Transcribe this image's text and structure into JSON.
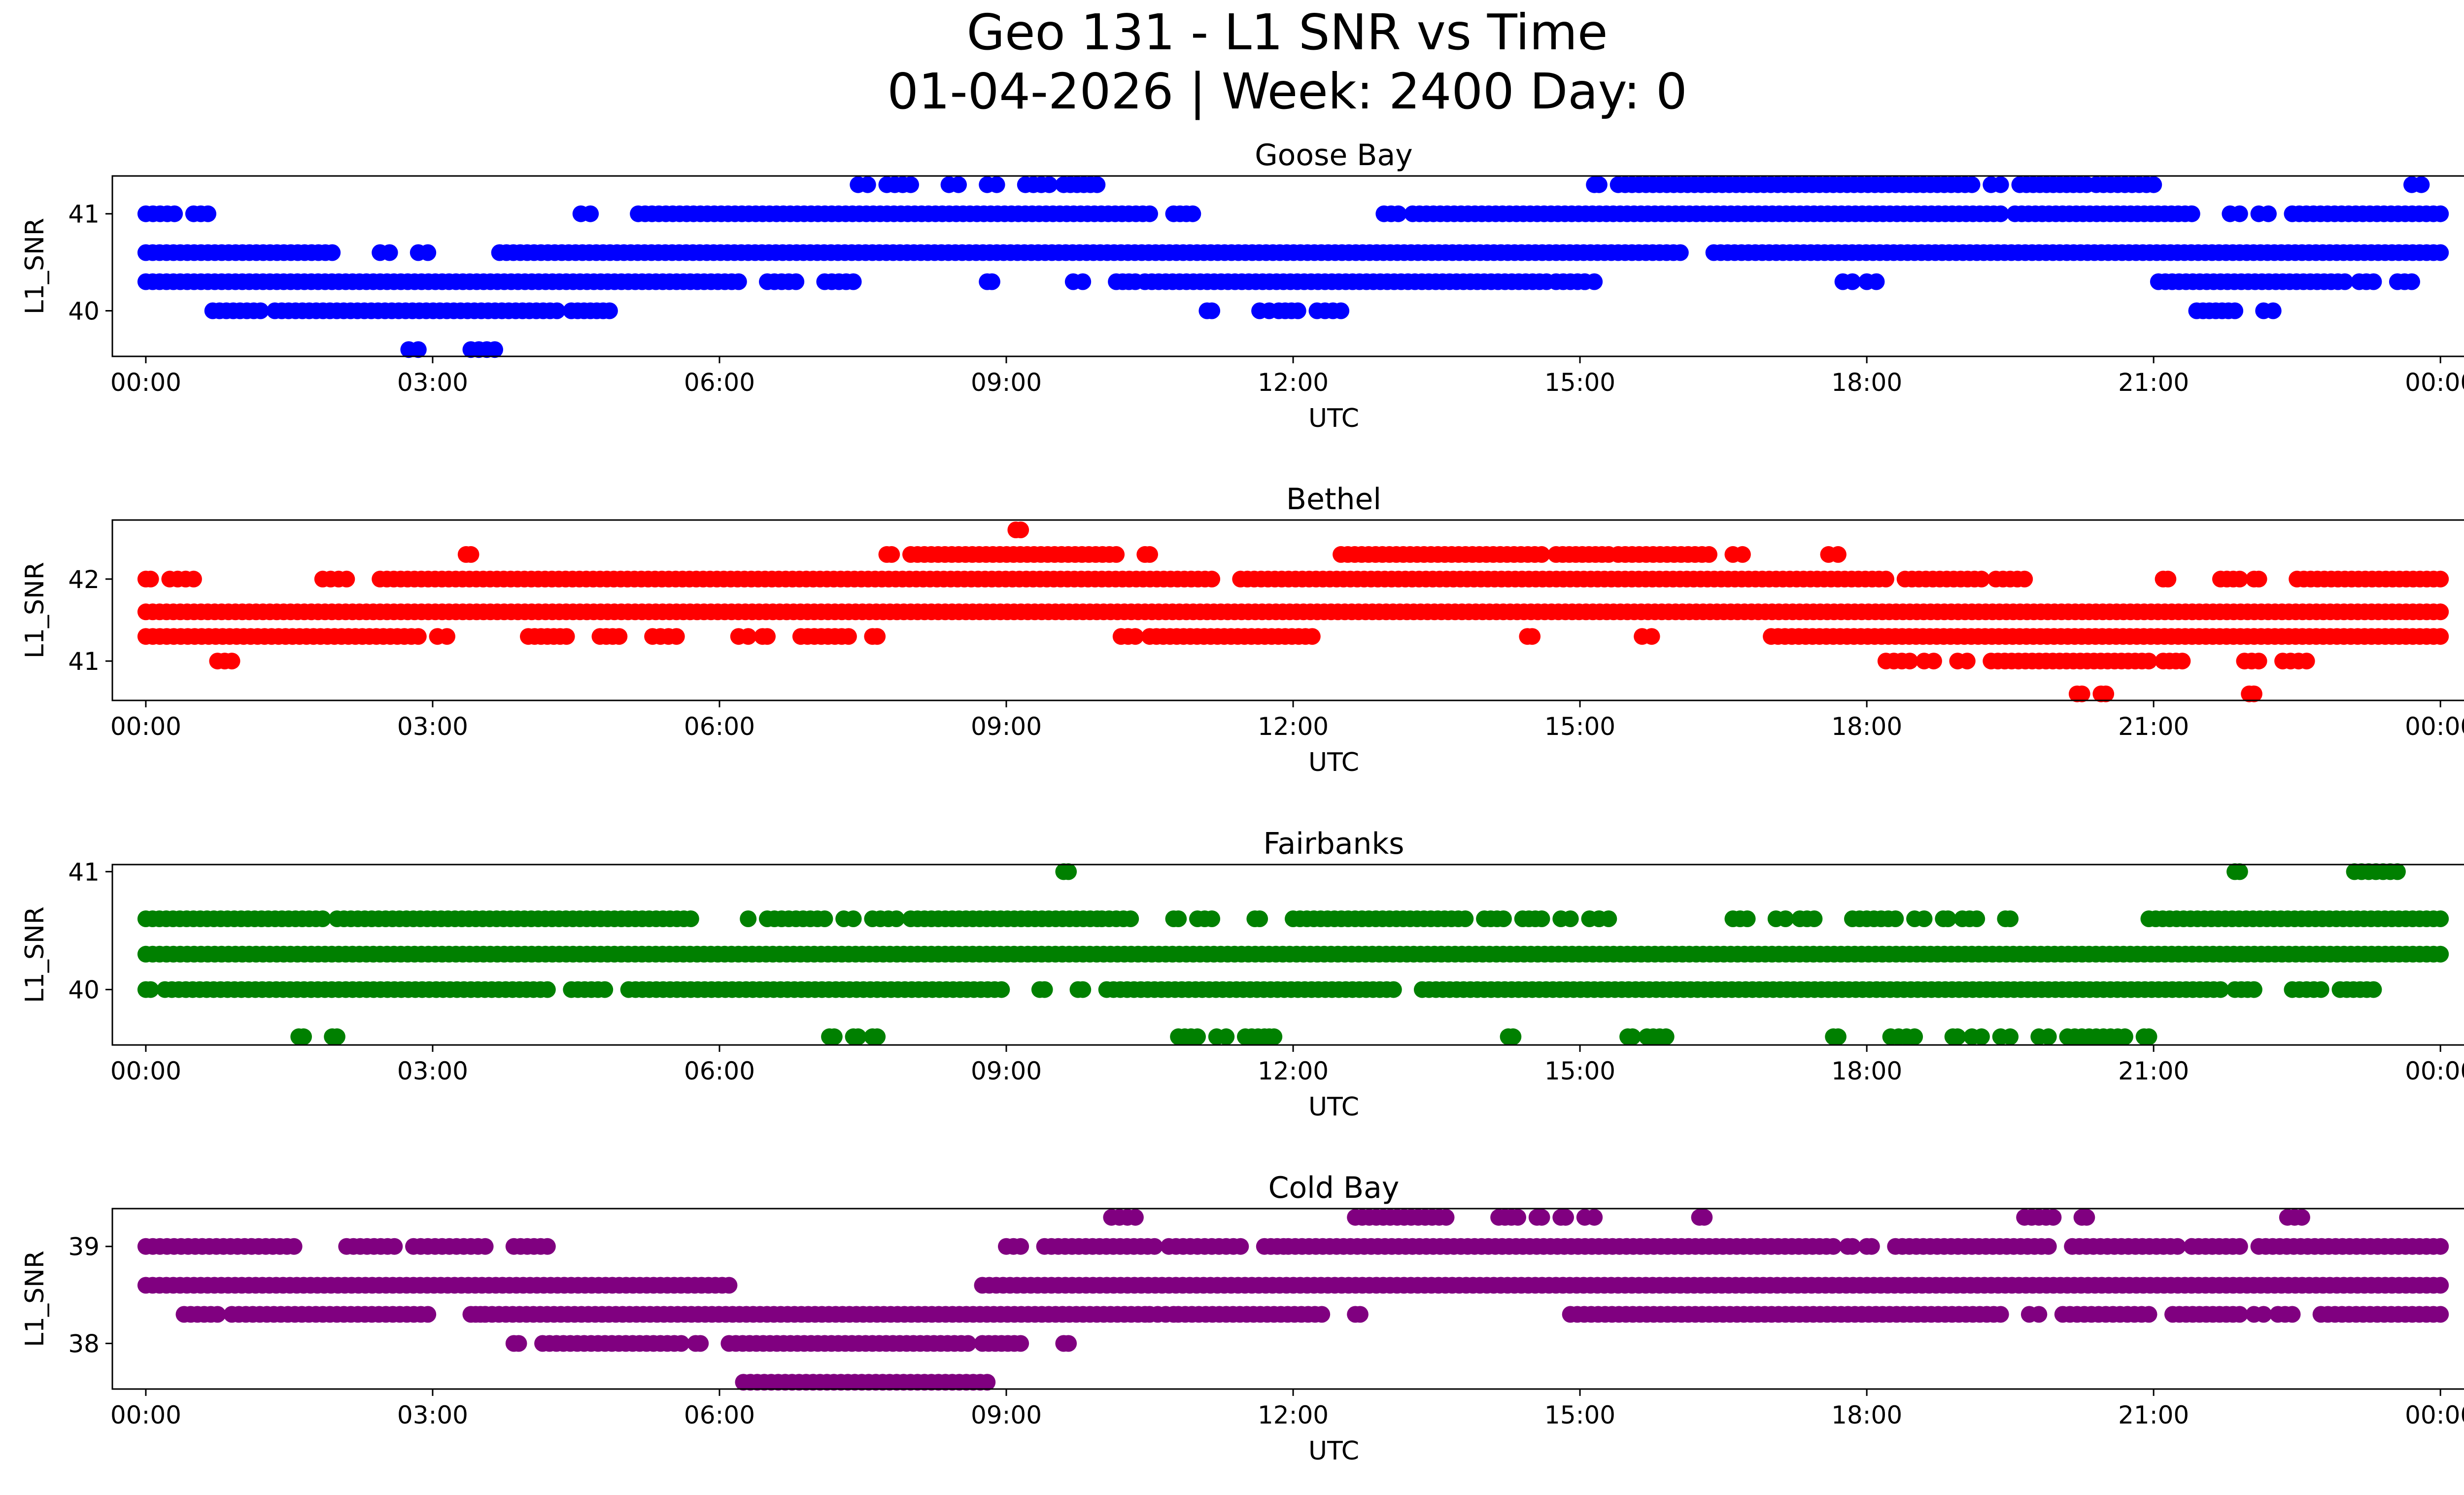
{
  "figure_title": {
    "line1": "Geo 131 - L1 SNR vs Time",
    "line2": "01-04-2026 | Week: 2400 Day: 0"
  },
  "chart_data": [
    {
      "type": "scatter",
      "title": "Goose Bay",
      "color": "#0000ff",
      "xlabel": "UTC",
      "ylabel": "L1_SNR",
      "x_unit": "hours",
      "xlim": [
        -0.35,
        25.2
      ],
      "ylim": [
        39.53,
        41.39
      ],
      "x_ticks": [
        0,
        3,
        6,
        9,
        12,
        15,
        18,
        21,
        24
      ],
      "x_tick_labels": [
        "00:00",
        "03:00",
        "06:00",
        "09:00",
        "12:00",
        "15:00",
        "18:00",
        "21:00",
        "00:00"
      ],
      "y_ticks": [
        40,
        41
      ],
      "y_tick_labels": [
        "40",
        "41"
      ],
      "levels": [
        {
          "y": 41.3,
          "segments": [
            [
              7.45,
              7.55
            ],
            [
              7.75,
              8.0
            ],
            [
              8.4,
              8.5
            ],
            [
              8.8,
              8.9
            ],
            [
              9.2,
              9.45
            ],
            [
              9.6,
              9.95
            ],
            [
              15.15,
              15.2
            ],
            [
              15.4,
              19.1
            ],
            [
              19.3,
              19.4
            ],
            [
              19.6,
              20.3
            ],
            [
              20.4,
              21.0
            ],
            [
              23.7,
              23.8
            ]
          ]
        },
        {
          "y": 41.0,
          "segments": [
            [
              0.0,
              0.3
            ],
            [
              0.5,
              0.65
            ],
            [
              4.55,
              4.65
            ],
            [
              5.15,
              10.5
            ],
            [
              10.75,
              10.95
            ],
            [
              12.95,
              13.1
            ],
            [
              13.25,
              19.4
            ],
            [
              19.55,
              21.4
            ],
            [
              21.8,
              21.9
            ],
            [
              22.1,
              22.2
            ],
            [
              22.45,
              24.0
            ]
          ]
        },
        {
          "y": 40.6,
          "segments": [
            [
              0.0,
              1.95
            ],
            [
              2.45,
              2.55
            ],
            [
              2.85,
              2.95
            ],
            [
              3.7,
              16.05
            ],
            [
              16.4,
              24.0
            ]
          ]
        },
        {
          "y": 40.3,
          "segments": [
            [
              0.0,
              6.2
            ],
            [
              6.5,
              6.8
            ],
            [
              7.1,
              7.4
            ],
            [
              8.8,
              8.85
            ],
            [
              9.7,
              9.8
            ],
            [
              10.15,
              10.35
            ],
            [
              10.45,
              14.65
            ],
            [
              14.75,
              15.05
            ],
            [
              15.05,
              15.15
            ],
            [
              17.75,
              17.85
            ],
            [
              18.0,
              18.1
            ],
            [
              21.05,
              23.0
            ],
            [
              23.15,
              23.3
            ],
            [
              23.55,
              23.7
            ]
          ]
        },
        {
          "y": 40.0,
          "segments": [
            [
              0.7,
              1.2
            ],
            [
              1.35,
              4.3
            ],
            [
              4.45,
              4.85
            ],
            [
              11.1,
              11.15
            ],
            [
              11.65,
              11.75
            ],
            [
              11.85,
              12.05
            ],
            [
              12.25,
              12.5
            ],
            [
              21.45,
              21.85
            ],
            [
              22.15,
              22.25
            ]
          ]
        },
        {
          "y": 39.6,
          "segments": [
            [
              2.75,
              2.85
            ],
            [
              3.4,
              3.65
            ]
          ]
        }
      ]
    },
    {
      "type": "scatter",
      "title": "Bethel",
      "color": "#ff0000",
      "xlabel": "UTC",
      "ylabel": "L1_SNR",
      "x_unit": "hours",
      "xlim": [
        -0.35,
        25.2
      ],
      "ylim": [
        40.52,
        42.72
      ],
      "x_ticks": [
        0,
        3,
        6,
        9,
        12,
        15,
        18,
        21,
        24
      ],
      "x_tick_labels": [
        "00:00",
        "03:00",
        "06:00",
        "09:00",
        "12:00",
        "15:00",
        "18:00",
        "21:00",
        "00:00"
      ],
      "y_ticks": [
        41,
        42
      ],
      "y_tick_labels": [
        "41",
        "42"
      ],
      "levels": [
        {
          "y": 42.6,
          "segments": [
            [
              9.1,
              9.15
            ]
          ]
        },
        {
          "y": 42.3,
          "segments": [
            [
              3.35,
              3.4
            ],
            [
              7.75,
              7.8
            ],
            [
              8.0,
              10.15
            ],
            [
              10.45,
              10.5
            ],
            [
              12.5,
              14.6
            ],
            [
              14.75,
              15.3
            ],
            [
              15.4,
              16.35
            ],
            [
              16.6,
              16.7
            ],
            [
              17.6,
              17.7
            ]
          ]
        },
        {
          "y": 42.0,
          "segments": [
            [
              0.0,
              0.05
            ],
            [
              0.25,
              0.5
            ],
            [
              1.85,
              2.1
            ],
            [
              2.45,
              11.15
            ],
            [
              11.45,
              18.2
            ],
            [
              18.4,
              19.2
            ],
            [
              19.35,
              19.65
            ],
            [
              21.1,
              21.15
            ],
            [
              21.7,
              21.9
            ],
            [
              22.05,
              22.1
            ],
            [
              22.5,
              24.0
            ]
          ]
        },
        {
          "y": 41.6,
          "segments": [
            [
              0.0,
              24.0
            ]
          ]
        },
        {
          "y": 41.3,
          "segments": [
            [
              0.0,
              2.85
            ],
            [
              3.05,
              3.15
            ],
            [
              4.0,
              4.4
            ],
            [
              4.75,
              4.95
            ],
            [
              5.3,
              5.55
            ],
            [
              6.2,
              6.3
            ],
            [
              6.45,
              6.5
            ],
            [
              6.85,
              7.35
            ],
            [
              7.6,
              7.65
            ],
            [
              10.2,
              10.35
            ],
            [
              10.5,
              12.2
            ],
            [
              14.45,
              14.5
            ],
            [
              15.65,
              15.75
            ],
            [
              17.0,
              24.0
            ]
          ]
        },
        {
          "y": 41.0,
          "segments": [
            [
              0.75,
              0.9
            ],
            [
              18.2,
              18.45
            ],
            [
              18.6,
              18.7
            ],
            [
              18.95,
              19.05
            ],
            [
              19.3,
              20.95
            ],
            [
              21.1,
              21.3
            ],
            [
              21.95,
              22.1
            ],
            [
              22.35,
              22.6
            ]
          ]
        },
        {
          "y": 40.6,
          "segments": [
            [
              20.2,
              20.25
            ],
            [
              20.45,
              20.5
            ],
            [
              22.0,
              22.05
            ]
          ]
        }
      ]
    },
    {
      "type": "scatter",
      "title": "Fairbanks",
      "color": "#008000",
      "xlabel": "UTC",
      "ylabel": "L1_SNR",
      "x_unit": "hours",
      "xlim": [
        -0.35,
        25.2
      ],
      "ylim": [
        39.53,
        41.06
      ],
      "x_ticks": [
        0,
        3,
        6,
        9,
        12,
        15,
        18,
        21,
        24
      ],
      "x_tick_labels": [
        "00:00",
        "03:00",
        "06:00",
        "09:00",
        "12:00",
        "15:00",
        "18:00",
        "21:00",
        "00:00"
      ],
      "y_ticks": [
        40,
        41
      ],
      "y_tick_labels": [
        "40",
        "41"
      ],
      "levels": [
        {
          "y": 41.0,
          "segments": [
            [
              9.6,
              9.65
            ],
            [
              21.85,
              21.9
            ],
            [
              23.1,
              23.55
            ]
          ]
        },
        {
          "y": 40.6,
          "segments": [
            [
              0.0,
              1.85
            ],
            [
              2.0,
              5.7
            ],
            [
              6.3,
              6.3
            ],
            [
              6.5,
              7.1
            ],
            [
              7.3,
              7.4
            ],
            [
              7.6,
              7.85
            ],
            [
              8.0,
              9.95
            ],
            [
              10.0,
              10.3
            ],
            [
              10.75,
              10.8
            ],
            [
              11.0,
              11.15
            ],
            [
              11.6,
              11.65
            ],
            [
              12.0,
              13.8
            ],
            [
              14.0,
              14.2
            ],
            [
              14.4,
              14.6
            ],
            [
              14.8,
              14.9
            ],
            [
              15.1,
              15.2
            ],
            [
              15.2,
              15.3
            ],
            [
              16.6,
              16.75
            ],
            [
              17.05,
              17.15
            ],
            [
              17.3,
              17.45
            ],
            [
              17.85,
              18.3
            ],
            [
              18.5,
              18.6
            ],
            [
              18.8,
              18.85
            ],
            [
              19.0,
              19.15
            ],
            [
              19.45,
              19.5
            ],
            [
              20.95,
              24.0
            ]
          ]
        },
        {
          "y": 40.3,
          "segments": [
            [
              0.0,
              24.0
            ]
          ]
        },
        {
          "y": 40.0,
          "segments": [
            [
              0.0,
              0.05
            ],
            [
              0.2,
              4.2
            ],
            [
              4.45,
              4.8
            ],
            [
              5.05,
              8.95
            ],
            [
              9.35,
              9.4
            ],
            [
              9.75,
              9.8
            ],
            [
              10.05,
              13.05
            ],
            [
              13.35,
              21.7
            ],
            [
              21.85,
              22.05
            ],
            [
              22.45,
              22.75
            ],
            [
              22.95,
              23.3
            ]
          ]
        },
        {
          "y": 39.6,
          "segments": [
            [
              1.6,
              1.65
            ],
            [
              1.95,
              2.0
            ],
            [
              7.15,
              7.2
            ],
            [
              7.4,
              7.45
            ],
            [
              7.6,
              7.65
            ],
            [
              10.8,
              11.0
            ],
            [
              11.2,
              11.3
            ],
            [
              11.5,
              11.7
            ],
            [
              11.75,
              11.8
            ],
            [
              14.25,
              14.3
            ],
            [
              15.5,
              15.55
            ],
            [
              15.7,
              15.9
            ],
            [
              17.65,
              17.7
            ],
            [
              18.25,
              18.5
            ],
            [
              18.9,
              18.95
            ],
            [
              19.1,
              19.2
            ],
            [
              19.4,
              19.5
            ],
            [
              19.8,
              19.9
            ],
            [
              20.1,
              20.7
            ],
            [
              20.9,
              20.95
            ]
          ]
        }
      ]
    },
    {
      "type": "scatter",
      "title": "Cold Bay",
      "color": "#800080",
      "xlabel": "UTC",
      "ylabel": "L1_SNR",
      "x_unit": "hours",
      "xlim": [
        -0.35,
        25.2
      ],
      "ylim": [
        37.53,
        39.39
      ],
      "x_ticks": [
        0,
        3,
        6,
        9,
        12,
        15,
        18,
        21,
        24
      ],
      "x_tick_labels": [
        "00:00",
        "03:00",
        "06:00",
        "09:00",
        "12:00",
        "15:00",
        "18:00",
        "21:00",
        "00:00"
      ],
      "y_ticks": [
        38,
        39
      ],
      "y_tick_labels": [
        "38",
        "39"
      ],
      "levels": [
        {
          "y": 39.3,
          "segments": [
            [
              10.1,
              10.35
            ],
            [
              12.65,
              13.6
            ],
            [
              14.15,
              14.35
            ],
            [
              14.55,
              14.6
            ],
            [
              14.8,
              14.85
            ],
            [
              15.05,
              15.15
            ],
            [
              16.25,
              16.3
            ],
            [
              19.65,
              19.95
            ],
            [
              20.25,
              20.3
            ],
            [
              22.4,
              22.55
            ]
          ]
        },
        {
          "y": 39.0,
          "segments": [
            [
              0.0,
              1.55
            ],
            [
              2.1,
              2.6
            ],
            [
              2.8,
              3.55
            ],
            [
              3.85,
              4.2
            ],
            [
              9.0,
              9.15
            ],
            [
              9.4,
              10.55
            ],
            [
              10.7,
              11.45
            ],
            [
              11.7,
              11.9
            ],
            [
              11.95,
              17.65
            ],
            [
              17.8,
              17.85
            ],
            [
              18.0,
              18.05
            ],
            [
              18.3,
              19.9
            ],
            [
              20.15,
              21.25
            ],
            [
              21.4,
              21.9
            ],
            [
              22.1,
              24.0
            ]
          ]
        },
        {
          "y": 38.6,
          "segments": [
            [
              0.0,
              6.1
            ],
            [
              8.75,
              24.0
            ]
          ]
        },
        {
          "y": 38.3,
          "segments": [
            [
              0.4,
              0.75
            ],
            [
              0.9,
              2.95
            ],
            [
              3.4,
              3.45
            ],
            [
              3.5,
              3.55
            ],
            [
              3.55,
              10.45
            ],
            [
              10.5,
              10.75
            ],
            [
              10.8,
              12.3
            ],
            [
              12.65,
              12.7
            ],
            [
              14.9,
              19.4
            ],
            [
              19.7,
              19.8
            ],
            [
              20.05,
              20.95
            ],
            [
              21.2,
              21.9
            ],
            [
              22.05,
              22.15
            ],
            [
              22.3,
              22.45
            ],
            [
              22.75,
              24.0
            ]
          ]
        },
        {
          "y": 38.0,
          "segments": [
            [
              3.85,
              3.9
            ],
            [
              4.15,
              5.6
            ],
            [
              5.75,
              5.8
            ],
            [
              6.1,
              8.6
            ],
            [
              8.75,
              9.15
            ],
            [
              9.6,
              9.65
            ]
          ]
        },
        {
          "y": 37.6,
          "segments": [
            [
              6.25,
              8.8
            ]
          ]
        }
      ]
    }
  ]
}
